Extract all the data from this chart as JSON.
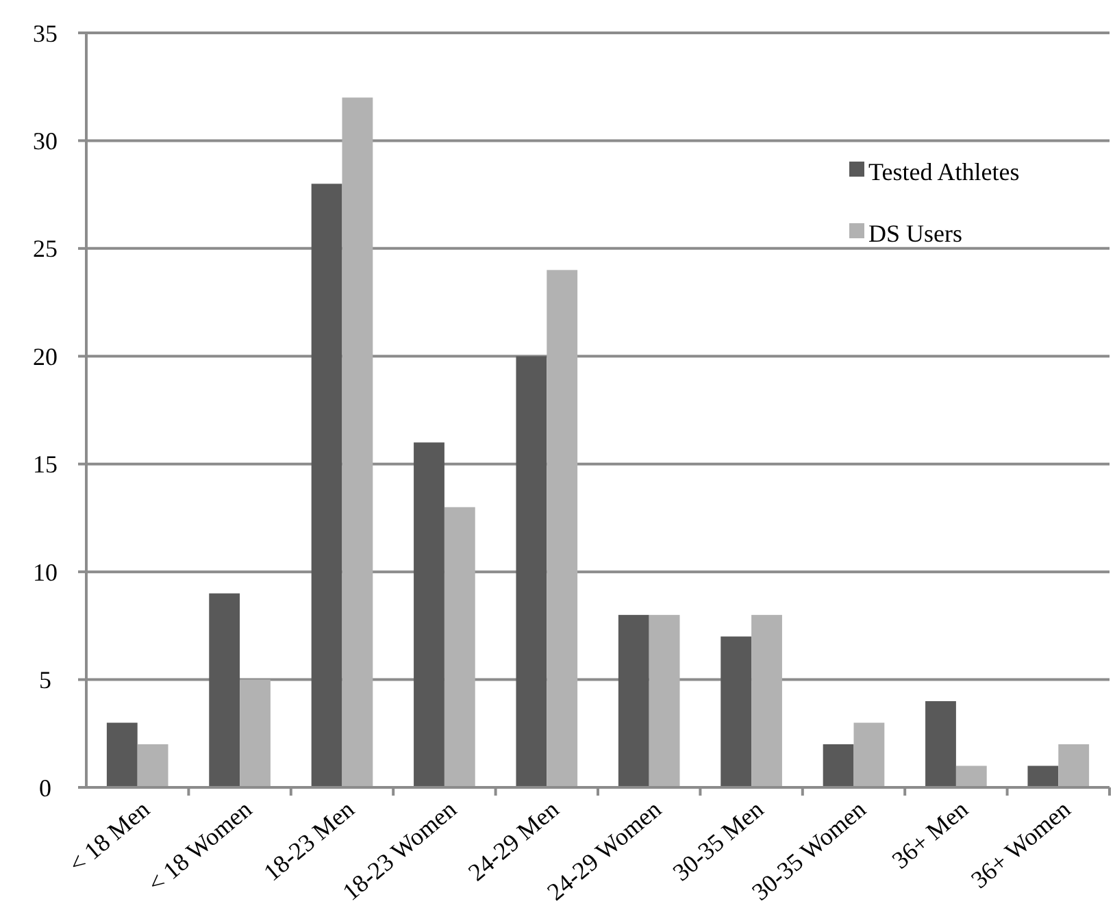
{
  "chart_data": {
    "type": "bar",
    "categories": [
      "< 18 Men",
      "< 18 Women",
      "18-23 Men",
      "18-23 Women",
      "24-29 Men",
      "24-29 Women",
      "30-35 Men",
      "30-35 Women",
      "36+ Men",
      "36+ Women"
    ],
    "series": [
      {
        "name": "Tested Athletes",
        "color": "#595959",
        "values": [
          3,
          9,
          28,
          16,
          20,
          8,
          7,
          2,
          4,
          1
        ]
      },
      {
        "name": "DS Users",
        "color": "#b2b2b2",
        "values": [
          2,
          5,
          32,
          13,
          24,
          8,
          8,
          3,
          1,
          2
        ]
      }
    ],
    "ylim": [
      0,
      35
    ],
    "yticks": [
      0,
      5,
      10,
      15,
      20,
      25,
      30,
      35
    ],
    "grid": "y",
    "legend": "top right"
  }
}
